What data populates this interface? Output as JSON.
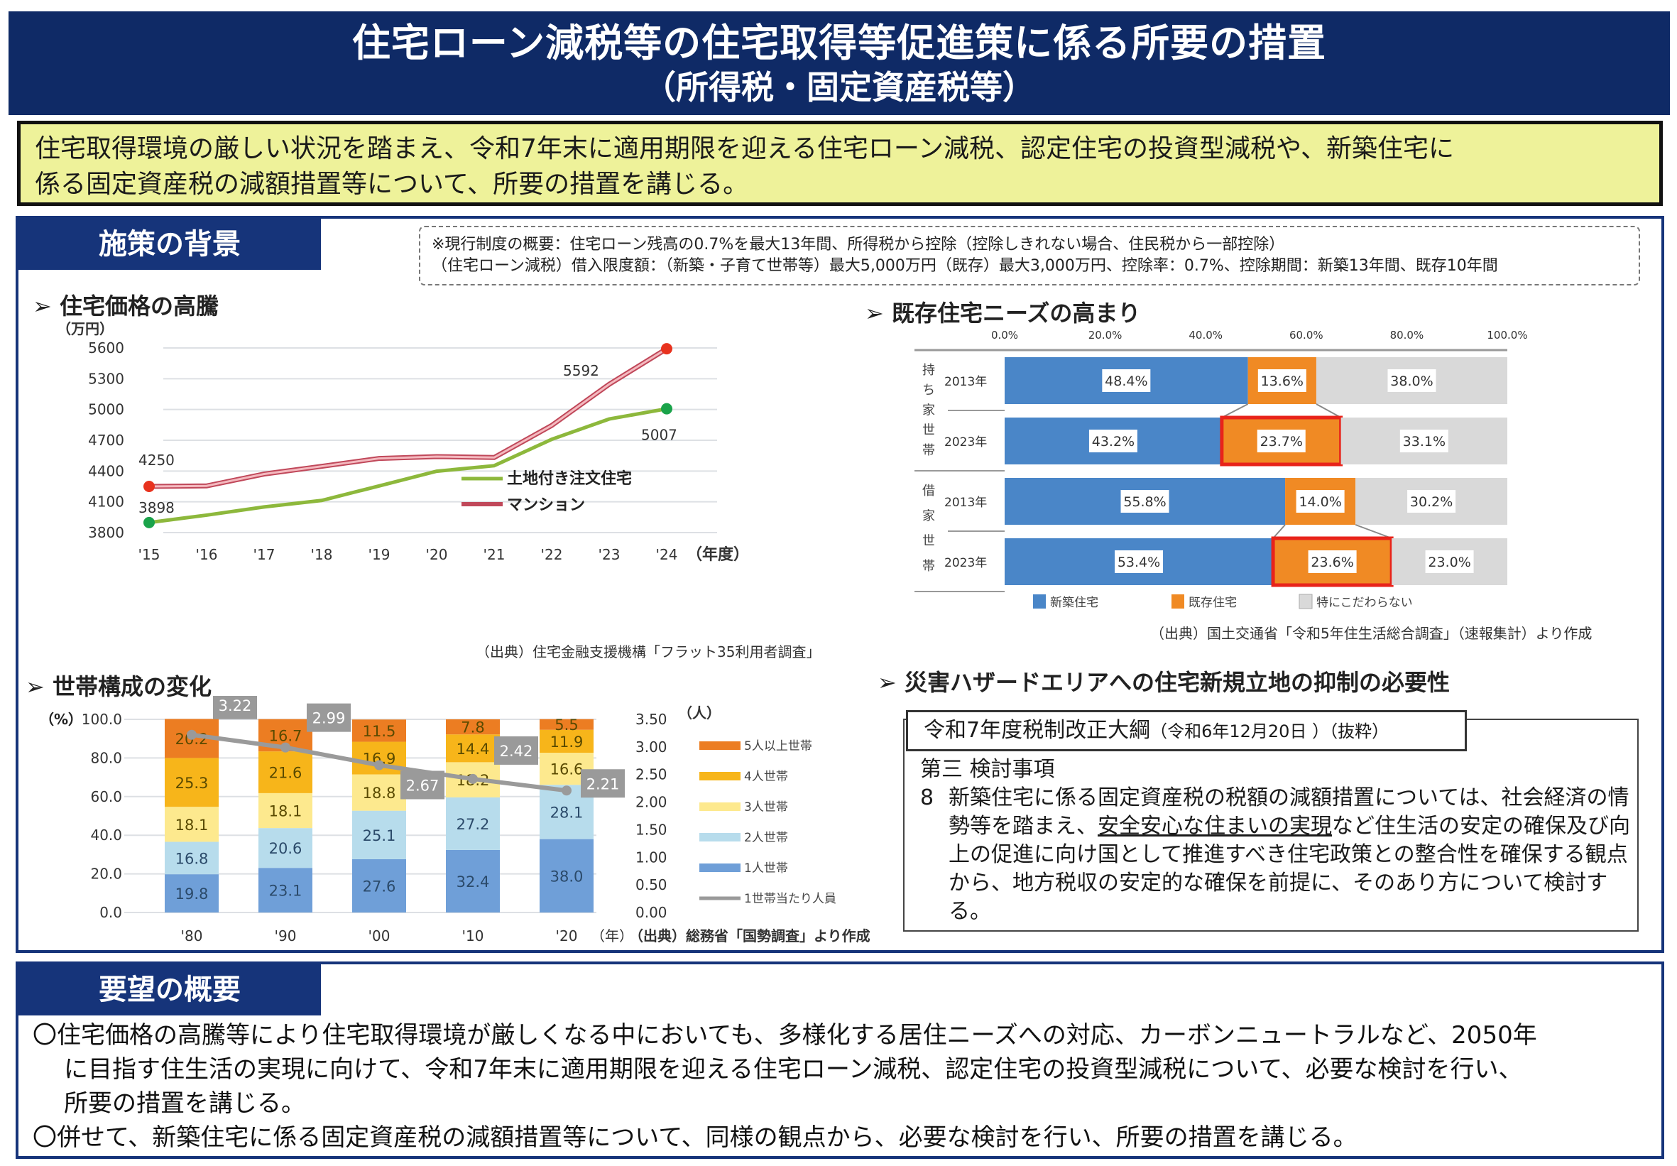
{
  "header": {
    "title_line1": "住宅ローン減税等の住宅取得等促進策に係る所要の措置",
    "title_line2": "（所得税・固定資産税等）"
  },
  "summary": {
    "line1": "住宅取得環境の厳しい状況を踏まえ、令和7年末に適用期限を迎える住宅ローン減税、認定住宅の投資型減税や、新築住宅に",
    "line2": "係る固定資産税の減額措置等について、所要の措置を講じる。"
  },
  "background": {
    "tab_label": "施策の背景",
    "note_line1": "※現行制度の概要：住宅ローン残高の0.7%を最大13年間、所得税から控除（控除しきれない場合、住民税から一部控除）",
    "note_line2": "（住宅ローン減税）借入限度額：（新築・子育て世帯等）最大5,000万円（既存）最大3,000万円、控除率：0.7%、控除期間：新築13年間、既存10年間"
  },
  "price_section": {
    "heading": "➢ 住宅価格の高騰",
    "source": "（出典）住宅金融支援機構「フラット35利用者調査」"
  },
  "household_section": {
    "heading": "➢ 世帯構成の変化",
    "source": "（出典）総務省「国勢調査」より作成"
  },
  "existing_section": {
    "heading": "➢ 既存住宅ニーズの高まり",
    "source": "（出典）国土交通省「令和5年住生活総合調査」（速報集計）より作成"
  },
  "hazard_section": {
    "heading": "➢ 災害ハザードエリアへの住宅新規立地の抑制の必要性",
    "law_title": "令和7年度税制改正大綱",
    "law_title_sub": "（令和6年12月20日 ）（抜粋）",
    "law_section": "第三 検討事項",
    "item_number": "8",
    "body_before_underline": "新築住宅に係る固定資産税の税額の減額措置については、社会経済の情勢等を踏まえ、",
    "body_underline": "安全安心な住まいの実現",
    "body_after_underline": "など住生活の安定の確保及び向上の促進に向け国として推進すべき住宅政策との整合性を確保する観点から、地方税収の安定的な確保を前提に、そのあり方について検討する。"
  },
  "request": {
    "tab_label": "要望の概要",
    "bullet1_line1": "〇住宅価格の高騰等により住宅取得環境が厳しくなる中においても、多様化する居住ニーズへの対応、カーボンニュートラルなど、2050年",
    "bullet1_line2": "に目指す住生活の実現に向けて、令和7年末に適用期限を迎える住宅ローン減税、認定住宅の投資型減税について、必要な検討を行い、",
    "bullet1_line3": "所要の措置を講じる。",
    "bullet2": "〇併せて、新築住宅に係る固定資産税の減額措置等について、同様の観点から、必要な検討を行い、所要の措置を講じる。"
  },
  "chart_data": [
    {
      "type": "line",
      "title": "住宅価格の高騰",
      "ylabel": "（万円）",
      "xlabel": "（年度）",
      "x": [
        "'15",
        "'16",
        "'17",
        "'18",
        "'19",
        "'20",
        "'21",
        "'22",
        "'23",
        "'24"
      ],
      "ylim": [
        3800,
        5600
      ],
      "yticks": [
        3800,
        4100,
        4400,
        4700,
        5000,
        5300,
        5600
      ],
      "grid": true,
      "legend_position": "bottom-right",
      "series": [
        {
          "name": "土地付き注文住宅",
          "color": "#8db83c",
          "values": [
            3898,
            3970,
            4050,
            4113,
            4255,
            4398,
            4452,
            4709,
            4907,
            5007
          ],
          "labeled": {
            "0": "3898",
            "9": "5007"
          }
        },
        {
          "name": "マンション",
          "color": "#e07a80",
          "values": [
            4250,
            4255,
            4371,
            4446,
            4523,
            4541,
            4532,
            4844,
            5246,
            5592
          ],
          "labeled": {
            "0": "4250",
            "9": "5592"
          }
        }
      ]
    },
    {
      "type": "bar",
      "stacked": true,
      "title": "世帯構成の変化",
      "ylabel": "（%）",
      "y2label": "（人）",
      "xlabel": "（年）",
      "categories": [
        "'80",
        "'90",
        "'00",
        "'10",
        "'20"
      ],
      "ylim": [
        0,
        100
      ],
      "yticks": [
        "0.0",
        "20.0",
        "40.0",
        "60.0",
        "80.0",
        "100.0"
      ],
      "y2lim": [
        0,
        3.5
      ],
      "y2ticks": [
        "0.00",
        "0.50",
        "1.00",
        "1.50",
        "2.00",
        "2.50",
        "3.00",
        "3.50"
      ],
      "legend_position": "right",
      "series": [
        {
          "name": "1人世帯",
          "color": "#6f9fd8",
          "values": [
            19.8,
            23.1,
            27.6,
            32.4,
            38.0
          ]
        },
        {
          "name": "2人世帯",
          "color": "#b7dcec",
          "values": [
            16.8,
            20.6,
            25.1,
            27.2,
            28.1
          ]
        },
        {
          "name": "3人世帯",
          "color": "#fde98e",
          "values": [
            18.1,
            18.1,
            18.8,
            18.2,
            16.6
          ]
        },
        {
          "name": "4人世帯",
          "color": "#f7b51a",
          "values": [
            25.3,
            21.6,
            16.9,
            14.4,
            11.9
          ]
        },
        {
          "name": "5人以上世帯",
          "color": "#ec7d22",
          "values": [
            20.2,
            16.7,
            11.5,
            7.8,
            5.5
          ]
        }
      ],
      "line_series": {
        "name": "1世帯当たり人員",
        "color": "#9a9a9a",
        "axis": "y2",
        "values": [
          3.22,
          2.99,
          2.67,
          2.42,
          2.21
        ]
      }
    },
    {
      "type": "bar",
      "stacked": true,
      "orientation": "horizontal",
      "title": "既存住宅ニーズの高まり",
      "xlim": [
        0,
        100
      ],
      "xticks": [
        "0.0%",
        "20.0%",
        "40.0%",
        "60.0%",
        "80.0%",
        "100.0%"
      ],
      "groups": [
        {
          "name": "持ち家世帯",
          "rows": [
            {
              "label": "2013年",
              "values": [
                48.4,
                13.6,
                38.0
              ],
              "highlight": false
            },
            {
              "label": "2023年",
              "values": [
                43.2,
                23.7,
                33.1
              ],
              "highlight": true
            }
          ]
        },
        {
          "name": "借家世帯",
          "rows": [
            {
              "label": "2013年",
              "values": [
                55.8,
                14.0,
                30.2
              ],
              "highlight": false
            },
            {
              "label": "2023年",
              "values": [
                53.4,
                23.6,
                23.0
              ],
              "highlight": true
            }
          ]
        }
      ],
      "series": [
        {
          "name": "新築住宅",
          "color": "#4a86c8"
        },
        {
          "name": "既存住宅",
          "color": "#f08a24"
        },
        {
          "name": "特にこだわらない",
          "color": "#d9d9d9"
        }
      ],
      "highlight_color": "#e8231a",
      "legend_position": "bottom"
    }
  ]
}
